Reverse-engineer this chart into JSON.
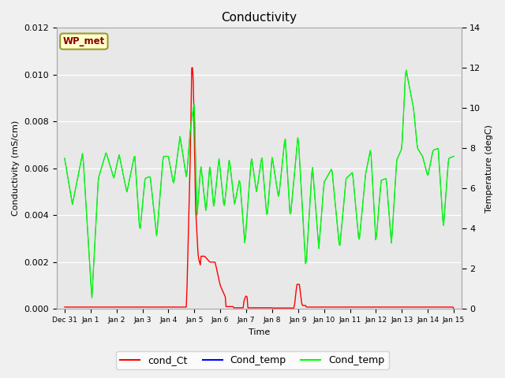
{
  "title": "Conductivity",
  "xlabel": "Time",
  "ylabel_left": "Conductivity (mS/cm)",
  "ylabel_right": "Temperature (degC)",
  "ylim_left": [
    0,
    0.012
  ],
  "ylim_right": [
    0,
    14
  ],
  "background_color": "#f0f0f0",
  "plot_bg_color": "#e8e8e8",
  "legend_items": [
    "cond_Ct",
    "Cond_temp",
    "Cond_temp"
  ],
  "legend_colors": [
    "red",
    "blue",
    "#00ff00"
  ],
  "wp_met_label": "WP_met",
  "wp_met_bg": "#ffffcc",
  "wp_met_border": "#999933",
  "wp_met_text_color": "#880000",
  "tick_labels": [
    "Dec 31",
    "Jan 1",
    "Jan 2",
    "Jan 3",
    "Jan 4",
    "Jan 5",
    "Jan 6",
    "Jan 7",
    "Jan 8",
    "Jan 9",
    "Jan 10",
    "Jan 11",
    "Jan 12",
    "Jan 13",
    "Jan 14",
    "Jan 15"
  ],
  "yticks_left": [
    0.0,
    0.002,
    0.004,
    0.006,
    0.008,
    0.01,
    0.012
  ],
  "yticks_right": [
    0,
    2,
    4,
    6,
    8,
    10,
    12,
    14
  ]
}
